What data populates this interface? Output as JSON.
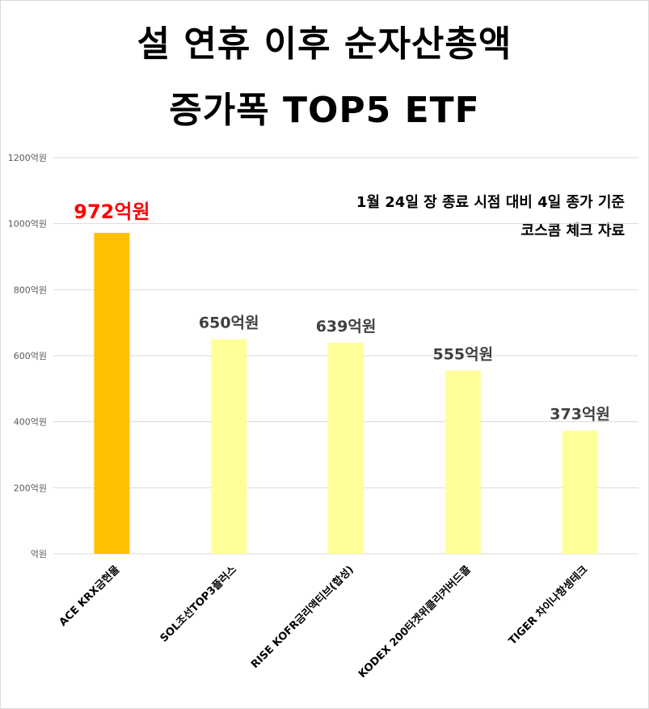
{
  "title": {
    "line1": "설 연휴 이후 순자산총액",
    "line2": "증가폭 TOP5 ETF"
  },
  "notes": {
    "line1": "1월 24일 장 종료 시점 대비 4일 종가 기준",
    "line2": "코스콤 체크 자료"
  },
  "colors": {
    "highlight_bar": "#ffc000",
    "bar": "#ffff99",
    "highlight_label": "#ff0000",
    "label": "#404040",
    "grid": "#d9d9d9"
  },
  "chart_data": {
    "type": "bar",
    "title": "설 연휴 이후 순자산총액 증가폭 TOP5 ETF",
    "categories": [
      "ACE KRX금현물",
      "SOL조선TOP3플러스",
      "RISE KOFR금리액티브(합성)",
      "KODEX 200타겟위클리커버드콜",
      "TIGER 차이나항셍테크"
    ],
    "values": [
      972,
      650,
      639,
      555,
      373
    ],
    "value_labels": [
      "972억원",
      "650억원",
      "639억원",
      "555억원",
      "373억원"
    ],
    "highlight_index": 0,
    "ylim": [
      0,
      1200
    ],
    "yticks": [
      0,
      200,
      400,
      600,
      800,
      1000,
      1200
    ],
    "ytick_labels": [
      "억원",
      "200억원",
      "400억원",
      "600억원",
      "800억원",
      "1000억원",
      "1200억원"
    ],
    "xlabel": "",
    "ylabel": "",
    "grid": true,
    "legend": "none"
  }
}
